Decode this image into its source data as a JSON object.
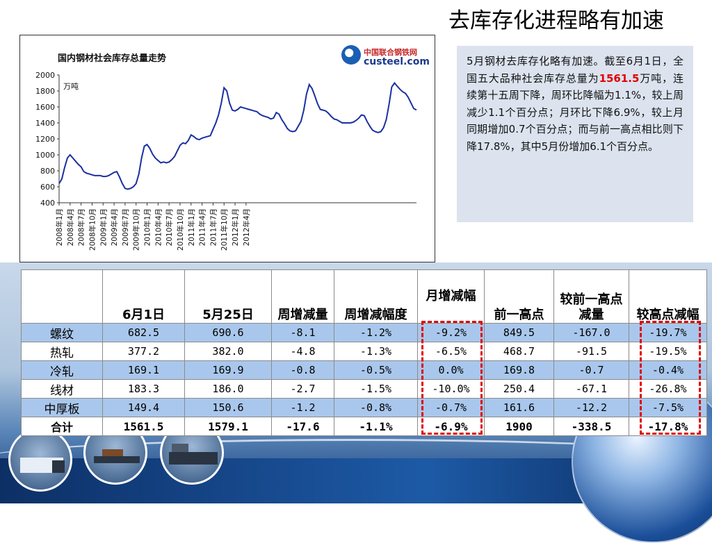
{
  "slide": {
    "title": "去库存化进程略有加速"
  },
  "chart": {
    "title": "国内钢材社会库存总量走势",
    "logo_cn": "中国联合钢铁网",
    "logo_en": "custeel.com",
    "unit_label": "万吨"
  },
  "chart_data": {
    "type": "line",
    "ylim": [
      400,
      2000
    ],
    "yticks": [
      2000,
      1800,
      1600,
      1400,
      1200,
      1000,
      800,
      600,
      400
    ],
    "xticks": [
      "2008年1月",
      "2008年4月",
      "2008年7月",
      "2008年10月",
      "2009年1月",
      "2009年4月",
      "2009年7月",
      "2009年10月",
      "2010年1月",
      "2010年4月",
      "2010年7月",
      "2010年10月",
      "2011年1月",
      "2011年4月",
      "2011年7月",
      "2011年10月",
      "2012年1月",
      "2012年4月"
    ],
    "x_start_index": 0,
    "x_step": 0.25,
    "values": [
      640,
      700,
      840,
      960,
      1000,
      960,
      920,
      880,
      850,
      790,
      770,
      760,
      750,
      740,
      740,
      740,
      730,
      730,
      740,
      760,
      780,
      790,
      720,
      640,
      580,
      570,
      580,
      600,
      640,
      760,
      960,
      1110,
      1130,
      1080,
      1010,
      960,
      930,
      900,
      910,
      900,
      910,
      940,
      980,
      1050,
      1120,
      1150,
      1140,
      1180,
      1250,
      1230,
      1200,
      1190,
      1210,
      1220,
      1230,
      1240,
      1320,
      1400,
      1500,
      1650,
      1840,
      1800,
      1650,
      1560,
      1550,
      1570,
      1600,
      1590,
      1580,
      1570,
      1560,
      1550,
      1540,
      1510,
      1490,
      1480,
      1470,
      1450,
      1460,
      1530,
      1510,
      1440,
      1390,
      1330,
      1300,
      1290,
      1300,
      1360,
      1420,
      1560,
      1760,
      1880,
      1830,
      1740,
      1640,
      1570,
      1560,
      1550,
      1520,
      1480,
      1450,
      1440,
      1420,
      1400,
      1400,
      1400,
      1400,
      1410,
      1430,
      1460,
      1500,
      1490,
      1420,
      1360,
      1310,
      1290,
      1280,
      1290,
      1340,
      1440,
      1630,
      1850,
      1900,
      1860,
      1820,
      1790,
      1770,
      1720,
      1650,
      1580,
      1561.5
    ]
  },
  "info_box": {
    "text_before": "5月钢材去库存化略有加速。截至6月1日，全国五大品种社会库存总量为",
    "highlight": "1561.5",
    "text_after": "万吨，连续第十五周下降，周环比降幅为1.1%，较上周减少1.1个百分点；月环比下降6.9%，较上月同期增加0.7个百分点；而与前一高点相比则下降17.8%，其中5月份增加6.1个百分点。"
  },
  "table": {
    "headers": [
      "",
      "6月1日",
      "5月25日",
      "周增减量",
      "周增减幅度",
      "月增减幅",
      "前一高点",
      "较前一高点减量",
      "较高点减幅"
    ],
    "rows": [
      {
        "name": "螺纹",
        "cells": [
          "682.5",
          "690.6",
          "-8.1",
          "-1.2%",
          "-9.2%",
          "849.5",
          "-167.0",
          "-19.7%"
        ],
        "style": "blue"
      },
      {
        "name": "热轧",
        "cells": [
          "377.2",
          "382.0",
          "-4.8",
          "-1.3%",
          "-6.5%",
          "468.7",
          "-91.5",
          "-19.5%"
        ],
        "style": "white"
      },
      {
        "name": "冷轧",
        "cells": [
          "169.1",
          "169.9",
          "-0.8",
          "-0.5%",
          "0.0%",
          "169.8",
          "-0.7",
          "-0.4%"
        ],
        "style": "blue"
      },
      {
        "name": "线材",
        "cells": [
          "183.3",
          "186.0",
          "-2.7",
          "-1.5%",
          "-10.0%",
          "250.4",
          "-67.1",
          "-26.8%"
        ],
        "style": "white"
      },
      {
        "name": "中厚板",
        "cells": [
          "149.4",
          "150.6",
          "-1.2",
          "-0.8%",
          "-0.7%",
          "161.6",
          "-12.2",
          "-7.5%"
        ],
        "style": "blue"
      },
      {
        "name": "合计",
        "cells": [
          "1561.5",
          "1579.1",
          "-17.6",
          "-1.1%",
          "-6.9%",
          "1900",
          "-338.5",
          "-17.8%"
        ],
        "style": "total"
      }
    ]
  },
  "colors": {
    "highlight_red": "#e00000",
    "row_blue": "#a9c7ec",
    "line_blue": "#1a2fa0"
  }
}
